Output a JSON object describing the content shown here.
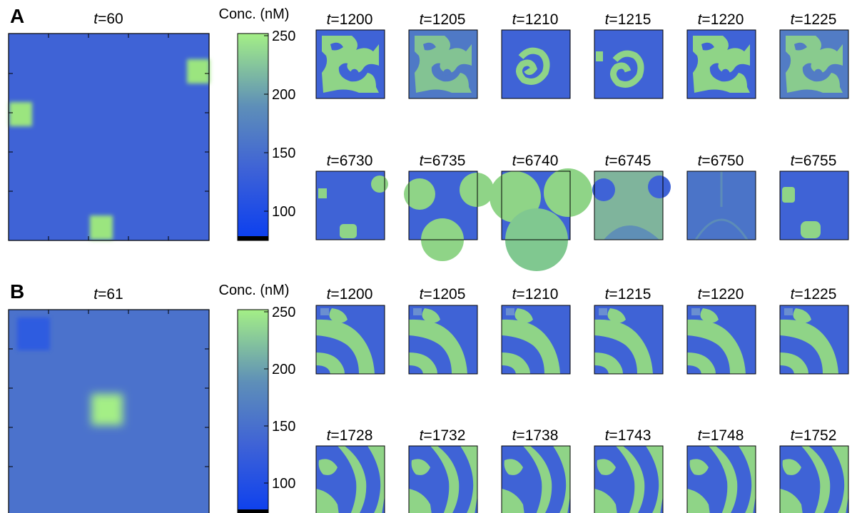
{
  "colors": {
    "background_blue": "#3f63d6",
    "pattern_green": "#9be57f",
    "colorbar_low": "#0a3ef0",
    "colorbar_high": "#a4ef86"
  },
  "panels": [
    {
      "label": "A",
      "main_time": "60",
      "colorbar": {
        "title": "Conc. (nM)",
        "ticks": [
          "250",
          "200",
          "150",
          "100"
        ]
      },
      "rows": [
        [
          "1200",
          "1205",
          "1210",
          "1215",
          "1220",
          "1225"
        ],
        [
          "6730",
          "6735",
          "6740",
          "6745",
          "6750",
          "6755"
        ]
      ]
    },
    {
      "label": "B",
      "main_time": "61",
      "colorbar": {
        "title": "Conc. (nM)",
        "ticks": [
          "250",
          "200",
          "150",
          "100"
        ]
      },
      "rows": [
        [
          "1200",
          "1205",
          "1210",
          "1215",
          "1220",
          "1225"
        ],
        [
          "1728",
          "1732",
          "1738",
          "1743",
          "1748",
          "1752"
        ]
      ]
    }
  ]
}
